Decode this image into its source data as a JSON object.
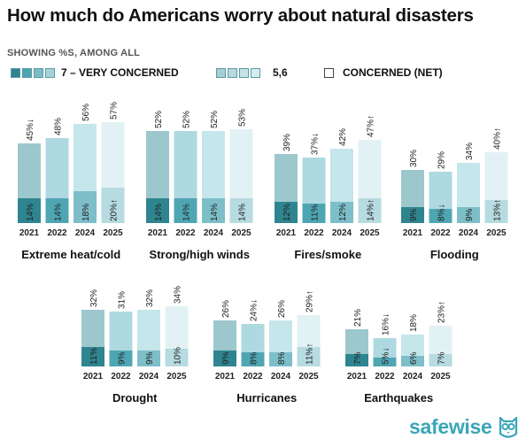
{
  "title": "How much do Americans worry about natural disasters",
  "subtitle": "SHOWING %S, AMONG ALL",
  "legend": [
    {
      "label": "7 – VERY CONCERNED",
      "swatches": [
        "#2e8590",
        "#4fa3b0",
        "#7bbdc7",
        "#a6d3da"
      ]
    },
    {
      "label": "5,6",
      "swatches": [
        "#a8cdd4",
        "#b8d9de",
        "#c8e3e7",
        "#d8ecef"
      ]
    },
    {
      "label": "CONCERNED (NET)",
      "swatches": [
        "#ffffff"
      ]
    }
  ],
  "colors": {
    "top": [
      "#9cc7cd",
      "#aed9e0",
      "#c5e6eb",
      "#e2f1f4"
    ],
    "bottom": [
      "#2e8590",
      "#4fa6b3",
      "#7dbec8",
      "#b6dbe1"
    ]
  },
  "brand": "safewise",
  "chart_data": [
    {
      "type": "bar",
      "title": "Extreme heat/cold",
      "categories": [
        "2021",
        "2022",
        "2024",
        "2025"
      ],
      "series": [
        {
          "name": "7 – VERY CONCERNED",
          "values": [
            14,
            14,
            18,
            20
          ]
        },
        {
          "name": "CONCERNED (NET)",
          "values": [
            45,
            48,
            56,
            57
          ]
        }
      ],
      "labels_top": [
        "45%↓",
        "48%",
        "56%",
        "57%"
      ],
      "labels_bottom": [
        "14%",
        "14%",
        "18%",
        "20%↑"
      ]
    },
    {
      "type": "bar",
      "title": "Strong/high winds",
      "categories": [
        "2021",
        "2022",
        "2024",
        "2025"
      ],
      "series": [
        {
          "name": "7 – VERY CONCERNED",
          "values": [
            14,
            14,
            14,
            14
          ]
        },
        {
          "name": "CONCERNED (NET)",
          "values": [
            52,
            52,
            52,
            53
          ]
        }
      ],
      "labels_top": [
        "52%",
        "52%",
        "52%",
        "53%"
      ],
      "labels_bottom": [
        "14%",
        "14%",
        "14%",
        "14%"
      ]
    },
    {
      "type": "bar",
      "title": "Fires/smoke",
      "categories": [
        "2021",
        "2022",
        "2024",
        "2025"
      ],
      "series": [
        {
          "name": "7 – VERY CONCERNED",
          "values": [
            12,
            11,
            12,
            14
          ]
        },
        {
          "name": "CONCERNED (NET)",
          "values": [
            39,
            37,
            42,
            47
          ]
        }
      ],
      "labels_top": [
        "39%",
        "37%↓",
        "42%",
        "47%↑"
      ],
      "labels_bottom": [
        "12%",
        "11%",
        "12%",
        "14%↑"
      ]
    },
    {
      "type": "bar",
      "title": "Flooding",
      "categories": [
        "2021",
        "2022",
        "2024",
        "2025"
      ],
      "series": [
        {
          "name": "7 – VERY CONCERNED",
          "values": [
            9,
            8,
            9,
            13
          ]
        },
        {
          "name": "CONCERNED (NET)",
          "values": [
            30,
            29,
            34,
            40
          ]
        }
      ],
      "labels_top": [
        "30%",
        "29%",
        "34%",
        "40%↑"
      ],
      "labels_bottom": [
        "9%",
        "8%↓",
        "9%",
        "13%↑"
      ]
    },
    {
      "type": "bar",
      "title": "Drought",
      "categories": [
        "2021",
        "2022",
        "2024",
        "2025"
      ],
      "series": [
        {
          "name": "7 – VERY CONCERNED",
          "values": [
            11,
            9,
            9,
            10
          ]
        },
        {
          "name": "CONCERNED (NET)",
          "values": [
            32,
            31,
            32,
            34
          ]
        }
      ],
      "labels_top": [
        "32%",
        "31%",
        "32%",
        "34%"
      ],
      "labels_bottom": [
        "11%",
        "9%",
        "9%",
        "10%"
      ]
    },
    {
      "type": "bar",
      "title": "Hurricanes",
      "categories": [
        "2021",
        "2022",
        "2024",
        "2025"
      ],
      "series": [
        {
          "name": "7 – VERY CONCERNED",
          "values": [
            9,
            8,
            8,
            11
          ]
        },
        {
          "name": "CONCERNED (NET)",
          "values": [
            26,
            24,
            26,
            29
          ]
        }
      ],
      "labels_top": [
        "26%",
        "24%↓",
        "26%",
        "29%↑"
      ],
      "labels_bottom": [
        "9%",
        "8%",
        "8%",
        "11%↑"
      ]
    },
    {
      "type": "bar",
      "title": "Earthquakes",
      "categories": [
        "2021",
        "2022",
        "2024",
        "2025"
      ],
      "series": [
        {
          "name": "7 – VERY CONCERNED",
          "values": [
            7,
            5,
            6,
            7
          ]
        },
        {
          "name": "CONCERNED (NET)",
          "values": [
            21,
            16,
            18,
            23
          ]
        }
      ],
      "labels_top": [
        "21%",
        "16%↓",
        "18%",
        "23%↑"
      ],
      "labels_bottom": [
        "7%",
        "5%↓",
        "6%",
        "7%"
      ]
    }
  ]
}
